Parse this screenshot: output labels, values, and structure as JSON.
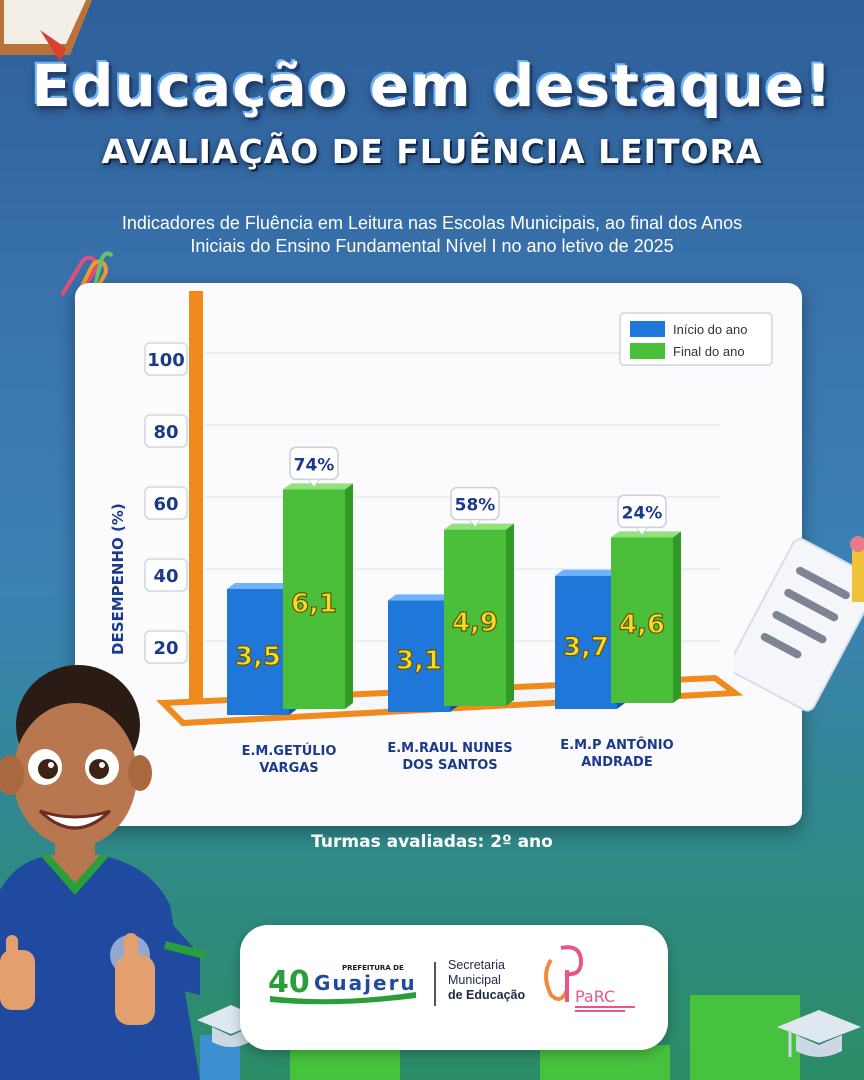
{
  "header": {
    "title": "Educação em destaque!",
    "subtitle": "AVALIAÇÃO DE FLUÊNCIA LEITORA",
    "description_line1": "Indicadores de Fluência em Leitura nas Escolas Municipais, ao final dos Anos",
    "description_line2": "Iniciais do Ensino Fundamental Nível I no ano letivo de 2025"
  },
  "chart_data": {
    "type": "bar",
    "ylabel": "DESEMPENHO (%)",
    "y_ticks": [
      "20",
      "40",
      "60",
      "80",
      "100"
    ],
    "ylim": [
      0,
      100
    ],
    "legend_position": "top-right",
    "categories": [
      "E.M.GETÚLIO VARGAS",
      "E.M.RAUL NUNES DOS SANTOS",
      "E.M.P ANTÔNIO ANDRADE"
    ],
    "category_lines": [
      [
        "E.M.GETÚLIO",
        "VARGAS"
      ],
      [
        "E.M.RAUL NUNES",
        "DOS SANTOS"
      ],
      [
        "E.M.P ANTÔNIO",
        "ANDRADE"
      ]
    ],
    "series": [
      {
        "name": "Início do ano",
        "color": "#1f77d9",
        "values": [
          3.5,
          3.1,
          3.7
        ],
        "labels": [
          "3,5",
          "3,1",
          "3,7"
        ]
      },
      {
        "name": "Final do ano",
        "color": "#4cbf3a",
        "values": [
          6.1,
          4.9,
          4.6
        ],
        "labels": [
          "6,1",
          "4,9",
          "4,6"
        ]
      }
    ],
    "growth_labels": [
      "74%",
      "58%",
      "24%"
    ]
  },
  "footer": {
    "caption": "Turmas avaliadas: 2º ano",
    "logos": {
      "prefeitura_small": "PREFEITURA DE",
      "prefeitura_name": "Guajeru",
      "prefeitura_number": "40",
      "secretaria_line1": "Secretaria",
      "secretaria_line2": "Municipal",
      "secretaria_line3": "de Educação",
      "parc_name": "PaRC"
    }
  }
}
